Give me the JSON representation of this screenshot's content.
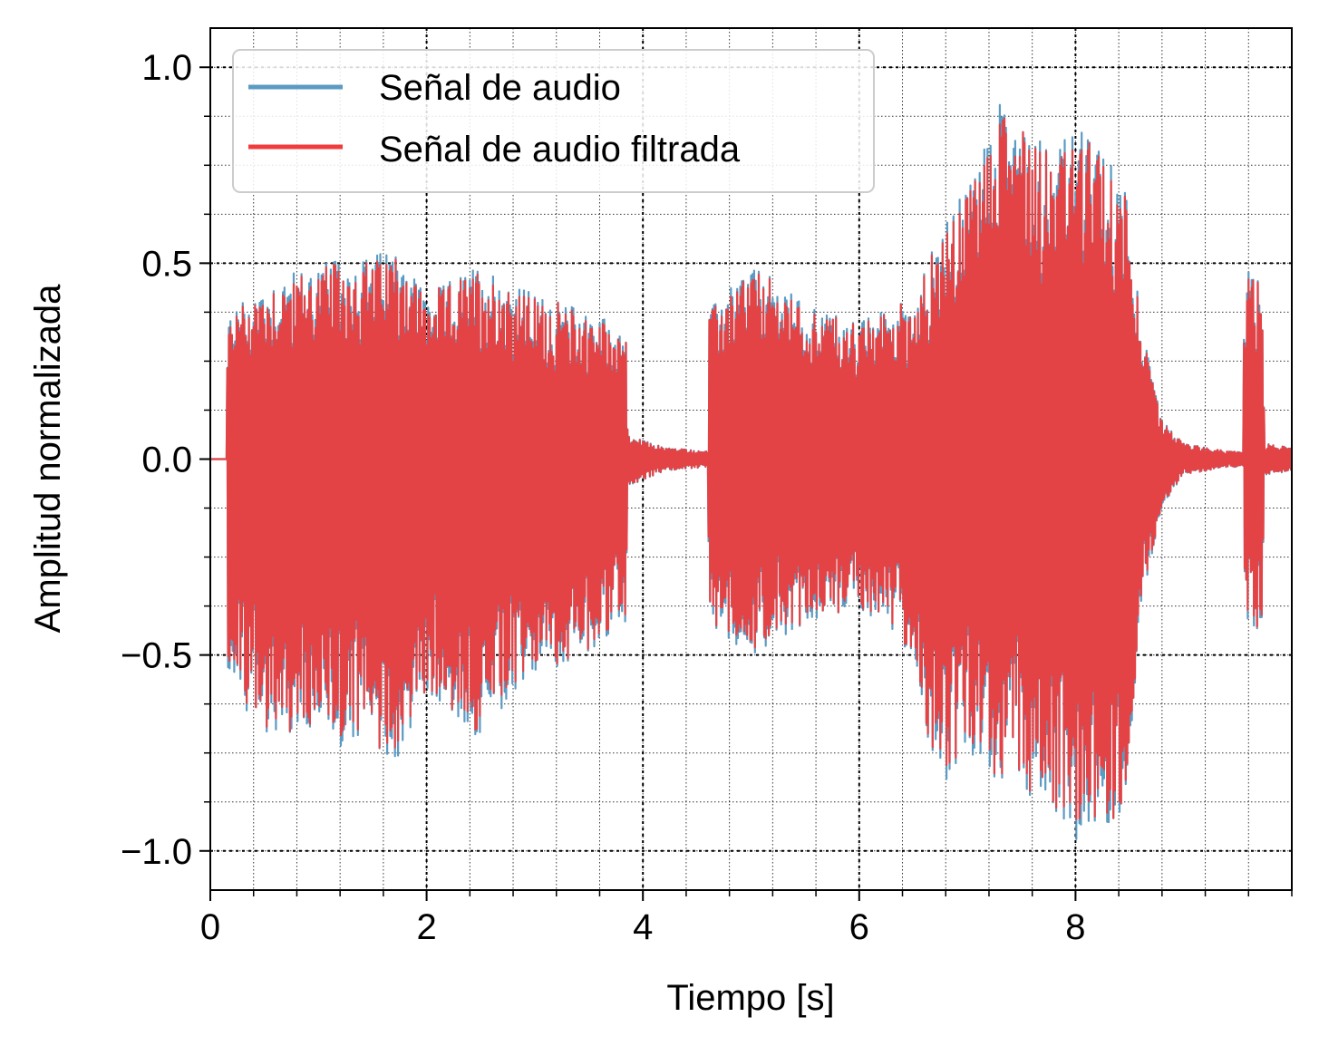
{
  "chart_data": {
    "type": "line",
    "title": "",
    "xlabel": "Tiempo [s]",
    "ylabel": "Amplitud normalizada",
    "xlim": [
      0,
      10
    ],
    "ylim": [
      -1.1,
      1.1
    ],
    "x_ticks": [
      0,
      2,
      4,
      6,
      8
    ],
    "x_tick_labels": [
      "0",
      "2",
      "4",
      "6",
      "8"
    ],
    "y_ticks": [
      1.0,
      0.5,
      0.0,
      -0.5,
      -1.0
    ],
    "y_tick_labels": [
      "1.0",
      "0.5",
      "0.0",
      "−0.5",
      "−1.0"
    ],
    "grid": true,
    "legend_position": "top-left",
    "series": [
      {
        "name": "Señal de audio",
        "color": "#5b9bc3"
      },
      {
        "name": "Señal de audio filtrada",
        "color": "#f03c3c"
      }
    ],
    "envelope_points": {
      "t": [
        0.0,
        0.15,
        0.16,
        0.5,
        1.0,
        1.5,
        1.75,
        2.0,
        2.5,
        3.0,
        3.5,
        3.84,
        3.86,
        4.2,
        4.6,
        4.61,
        5.0,
        5.5,
        6.0,
        6.5,
        6.7,
        7.0,
        7.35,
        7.8,
        8.0,
        8.2,
        8.5,
        8.6,
        8.8,
        9.0,
        9.4,
        9.55,
        9.56,
        9.72,
        9.75,
        10.0
      ],
      "pos": [
        0.0,
        0.0,
        0.38,
        0.45,
        0.5,
        0.52,
        0.55,
        0.42,
        0.5,
        0.42,
        0.38,
        0.34,
        0.06,
        0.03,
        0.02,
        0.38,
        0.5,
        0.4,
        0.35,
        0.42,
        0.55,
        0.7,
        0.95,
        0.8,
        0.85,
        0.8,
        0.7,
        0.35,
        0.1,
        0.04,
        0.02,
        0.02,
        0.5,
        0.45,
        0.04,
        0.03
      ],
      "neg": [
        0.0,
        0.0,
        -0.58,
        -0.7,
        -0.72,
        -0.75,
        -0.77,
        -0.6,
        -0.72,
        -0.55,
        -0.5,
        -0.42,
        -0.07,
        -0.03,
        -0.02,
        -0.42,
        -0.5,
        -0.42,
        -0.38,
        -0.5,
        -0.83,
        -0.8,
        -0.82,
        -0.9,
        -1.0,
        -0.95,
        -0.9,
        -0.38,
        -0.12,
        -0.04,
        -0.02,
        -0.02,
        -0.4,
        -0.45,
        -0.04,
        -0.03
      ]
    }
  }
}
